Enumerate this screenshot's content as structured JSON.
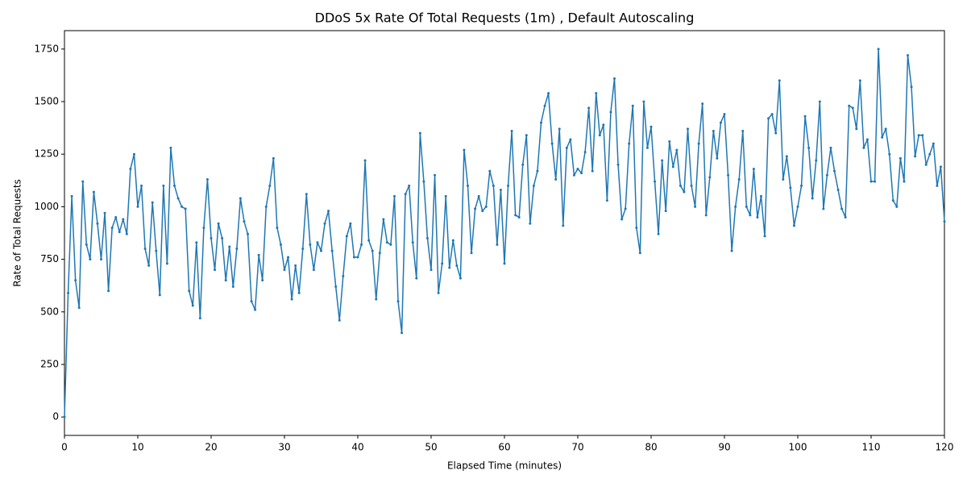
{
  "chart_data": {
    "type": "line",
    "title": "DDoS 5x Rate Of Total Requests (1m) , Default Autoscaling",
    "x_label": "Elapsed Time (minutes)",
    "y_label": "Rate of Total Requests",
    "xlim": [
      0,
      120
    ],
    "ylim": [
      -87.5,
      1837.5
    ],
    "xticks": [
      0,
      10,
      20,
      30,
      40,
      50,
      60,
      70,
      80,
      90,
      100,
      110,
      120
    ],
    "yticks": [
      0,
      250,
      500,
      750,
      1000,
      1250,
      1500,
      1750
    ],
    "grid": false,
    "x": [
      0,
      0.5,
      1,
      1.5,
      2,
      2.5,
      3,
      3.5,
      4,
      4.5,
      5,
      5.5,
      6,
      6.5,
      7,
      7.5,
      8,
      8.5,
      9,
      9.5,
      10,
      10.5,
      11,
      11.5,
      12,
      12.5,
      13,
      13.5,
      14,
      14.5,
      15,
      15.5,
      16,
      16.5,
      17,
      17.5,
      18,
      18.5,
      19,
      19.5,
      20,
      20.5,
      21,
      21.5,
      22,
      22.5,
      23,
      23.5,
      24,
      24.5,
      25,
      25.5,
      26,
      26.5,
      27,
      27.5,
      28,
      28.5,
      29,
      29.5,
      30,
      30.5,
      31,
      31.5,
      32,
      32.5,
      33,
      33.5,
      34,
      34.5,
      35,
      35.5,
      36,
      36.5,
      37,
      37.5,
      38,
      38.5,
      39,
      39.5,
      40,
      40.5,
      41,
      41.5,
      42,
      42.5,
      43,
      43.5,
      44,
      44.5,
      45,
      45.5,
      46,
      46.5,
      47,
      47.5,
      48,
      48.5,
      49,
      49.5,
      50,
      50.5,
      51,
      51.5,
      52,
      52.5,
      53,
      53.5,
      54,
      54.5,
      55,
      55.5,
      56,
      56.5,
      57,
      57.5,
      58,
      58.5,
      59,
      59.5,
      60,
      60.5,
      61,
      61.5,
      62,
      62.5,
      63,
      63.5,
      64,
      64.5,
      65,
      65.5,
      66,
      66.5,
      67,
      67.5,
      68,
      68.5,
      69,
      69.5,
      70,
      70.5,
      71,
      71.5,
      72,
      72.5,
      73,
      73.5,
      74,
      74.5,
      75,
      75.5,
      76,
      76.5,
      77,
      77.5,
      78,
      78.5,
      79,
      79.5,
      80,
      80.5,
      81,
      81.5,
      82,
      82.5,
      83,
      83.5,
      84,
      84.5,
      85,
      85.5,
      86,
      86.5,
      87,
      87.5,
      88,
      88.5,
      89,
      89.5,
      90,
      90.5,
      91,
      91.5,
      92,
      92.5,
      93,
      93.5,
      94,
      94.5,
      95,
      95.5,
      96,
      96.5,
      97,
      97.5,
      98,
      98.5,
      99,
      99.5,
      100,
      100.5,
      101,
      101.5,
      102,
      102.5,
      103,
      103.5,
      104,
      104.5,
      105,
      105.5,
      106,
      106.5,
      107,
      107.5,
      108,
      108.5,
      109,
      109.5,
      110,
      110.5,
      111,
      111.5,
      112,
      112.5,
      113,
      113.5,
      114,
      114.5,
      115,
      115.5,
      116,
      116.5,
      117,
      117.5,
      118,
      118.5,
      119,
      119.5,
      120
    ],
    "series": [
      {
        "color": "#1f77b4",
        "values": [
          0,
          590,
          1050,
          650,
          520,
          1120,
          820,
          750,
          1070,
          920,
          750,
          970,
          600,
          900,
          950,
          880,
          940,
          870,
          1180,
          1250,
          1000,
          1100,
          800,
          720,
          1020,
          790,
          580,
          1100,
          730,
          1280,
          1100,
          1040,
          1000,
          990,
          600,
          530,
          830,
          470,
          900,
          1130,
          850,
          700,
          920,
          850,
          650,
          810,
          620,
          800,
          1040,
          930,
          870,
          550,
          510,
          770,
          650,
          1000,
          1100,
          1230,
          900,
          820,
          700,
          760,
          560,
          720,
          590,
          800,
          1060,
          820,
          700,
          830,
          790,
          920,
          980,
          790,
          620,
          460,
          670,
          860,
          920,
          760,
          760,
          820,
          1220,
          840,
          790,
          560,
          780,
          940,
          830,
          820,
          1050,
          550,
          400,
          1060,
          1100,
          830,
          660,
          1350,
          1120,
          850,
          700,
          1150,
          590,
          730,
          1050,
          710,
          840,
          720,
          660,
          1270,
          1100,
          780,
          990,
          1050,
          980,
          1000,
          1170,
          1100,
          820,
          1080,
          730,
          1100,
          1360,
          960,
          950,
          1200,
          1340,
          920,
          1100,
          1170,
          1400,
          1480,
          1540,
          1300,
          1130,
          1370,
          910,
          1280,
          1320,
          1150,
          1180,
          1160,
          1260,
          1470,
          1170,
          1540,
          1340,
          1390,
          1030,
          1450,
          1610,
          1200,
          940,
          990,
          1300,
          1480,
          900,
          780,
          1500,
          1280,
          1380,
          1120,
          870,
          1220,
          980,
          1310,
          1190,
          1270,
          1100,
          1070,
          1370,
          1100,
          1000,
          1300,
          1490,
          960,
          1140,
          1360,
          1230,
          1400,
          1440,
          1150,
          790,
          1000,
          1130,
          1360,
          1000,
          960,
          1180,
          950,
          1050,
          860,
          1420,
          1440,
          1350,
          1600,
          1130,
          1240,
          1090,
          910,
          1000,
          1100,
          1430,
          1280,
          1040,
          1220,
          1500,
          990,
          1150,
          1280,
          1170,
          1080,
          990,
          950,
          1480,
          1470,
          1370,
          1600,
          1280,
          1320,
          1120,
          1120,
          1750,
          1330,
          1370,
          1250,
          1030,
          1000,
          1230,
          1120,
          1720,
          1570,
          1240,
          1340,
          1340,
          1200,
          1250,
          1300,
          1100,
          1190,
          930
        ]
      }
    ]
  }
}
